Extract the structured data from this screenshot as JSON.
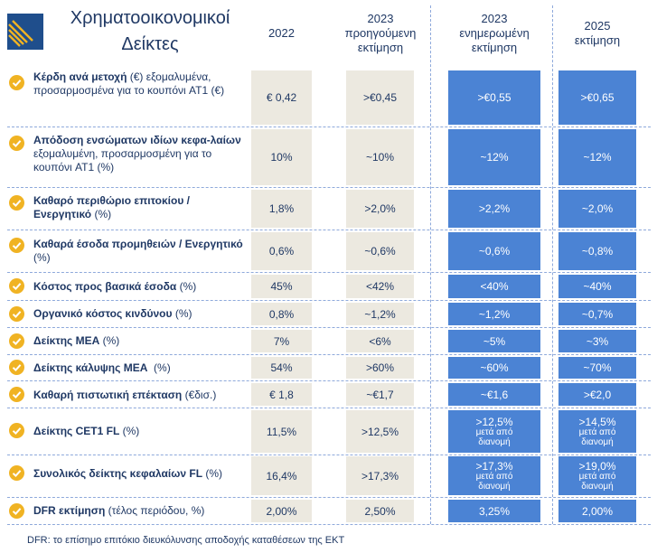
{
  "title_line1": "Χρηματοοικονομικοί",
  "title_line2": "Δείκτες",
  "headers": {
    "c1": "2022",
    "c2": [
      "2023",
      "προηγούμενη",
      "εκτίμηση"
    ],
    "c3": [
      "2023",
      "ενημερωμένη",
      "εκτίμηση"
    ],
    "c4": [
      "2025",
      "εκτίμηση"
    ]
  },
  "rows": [
    {
      "bold": "Κέρδη ανά μετοχή",
      "rest": " (€) εξομαλυμένα, προσαρμοσμένα για το κουπόνι AT1 (€)",
      "v": [
        "€ 0,42",
        ">€0,45",
        ">€0,55",
        ">€0,65"
      ]
    },
    {
      "bold": "Απόδοση ενσώματων ιδίων κεφα-λαίων",
      "rest": " εξομαλυμένη, προσαρμοσμένη για το κουπόνι AT1 (%)",
      "v": [
        "10%",
        "~10%",
        "~12%",
        "~12%"
      ]
    },
    {
      "bold": "Καθαρό περιθώριο επιτοκίου / Ενεργητικό",
      "rest": " (%)",
      "v": [
        "1,8%",
        ">2,0%",
        ">2,2%",
        "~2,0%"
      ]
    },
    {
      "bold": "Καθαρά έσοδα προμηθειών / Ενεργητικό",
      "rest": " (%)",
      "v": [
        "0,6%",
        "~0,6%",
        "~0,6%",
        "~0,8%"
      ]
    },
    {
      "bold": "Κόστος προς βασικά έσοδα",
      "rest": " (%)",
      "v": [
        "45%",
        "<42%",
        "<40%",
        "~40%"
      ]
    },
    {
      "bold": "Οργανικό κόστος κινδύνου",
      "rest": " (%)",
      "v": [
        "0,8%",
        "~1,2%",
        "~1,2%",
        "~0,7%"
      ]
    },
    {
      "bold": "Δείκτης ΜΕΑ",
      "rest": " (%)",
      "v": [
        "7%",
        "<6%",
        "~5%",
        "~3%"
      ]
    },
    {
      "bold": "Δείκτης κάλυψης ΜΕΑ",
      "rest": "  (%)",
      "v": [
        "54%",
        ">60%",
        "~60%",
        "~70%"
      ]
    },
    {
      "bold": "Καθαρή πιστωτική επέκταση",
      "rest": " (€δισ.)",
      "v": [
        "€ 1,8",
        "~€1,7",
        "~€1,6",
        ">€2,0"
      ]
    },
    {
      "bold": "Δείκτης CET1 FL",
      "rest": " (%)",
      "v": [
        "11,5%",
        ">12,5%",
        ">12,5%",
        ">14,5%"
      ],
      "sub": [
        "μετά από",
        "διανομή"
      ]
    },
    {
      "bold": "Συνολικός δείκτης κεφαλαίων FL",
      "rest": " (%)",
      "v": [
        "16,4%",
        ">17,3%",
        ">17,3%",
        ">19,0%"
      ],
      "sub": [
        "μετά από",
        "διανομή"
      ]
    },
    {
      "bold": "DFR εκτίμηση",
      "rest": " (τέλος περιόδου, %)",
      "v": [
        "2,00%",
        "2,50%",
        "3,25%",
        "2,00%"
      ]
    }
  ],
  "footnote": "DFR: το επίσημο επιτόκιο διευκόλυνσης αποδοχής καταθέσεων της ΕΚΤ"
}
